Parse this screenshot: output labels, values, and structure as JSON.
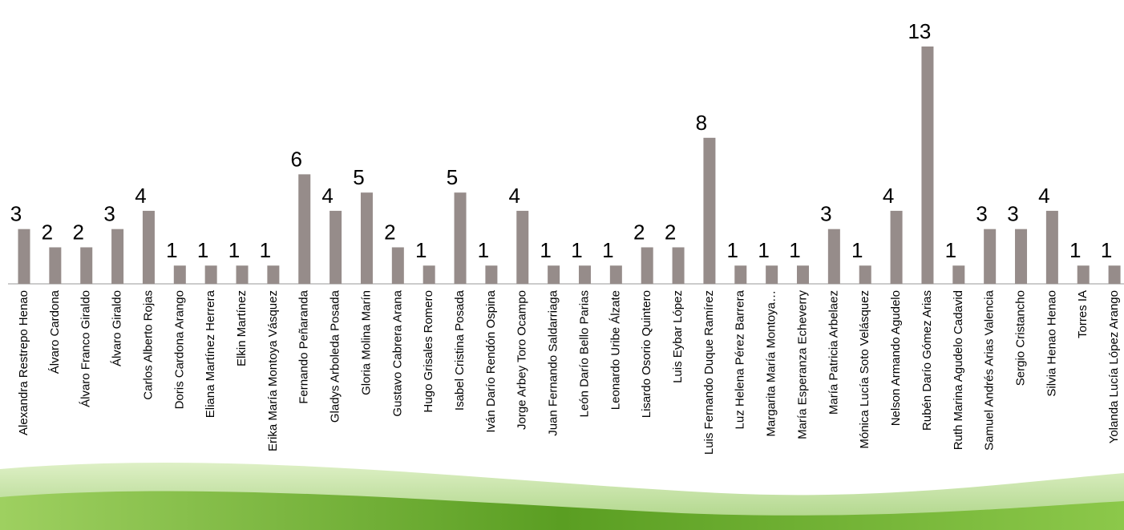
{
  "chart_data": {
    "type": "bar",
    "categories": [
      "Alexandra Restrepo Henao",
      "Álvaro Cardona",
      "Álvaro Franco Giraldo",
      "Álvaro Giraldo",
      "Carlos Alberto Rojas",
      "Doris Cardona Arango",
      "Eliana Martínez Herrera",
      "Elkin Martínez",
      "Erika María Montoya Vásquez",
      "Fernando Peñaranda",
      "Gladys Arboleda Posada",
      "Gloria Molina Marín",
      "Gustavo Cabrera Arana",
      "Hugo Grisales Romero",
      "Isabel Cristina Posada",
      "Iván Darío Rendón Ospina",
      "Jorge Arbey Toro Ocampo",
      "Juan Fernando Saldarriaga",
      "León Darío Bello Parias",
      "Leonardo Uribe Álzate",
      "Lisardo Osorio Quintero",
      "Luis Eybar López",
      "Luis Fernando Duque Ramírez",
      "Luz Helena Pérez Barrera",
      "Margarita María Montoya…",
      "María Esperanza Echeverry",
      "María Patricia Arbelaez",
      "Mónica Lucía Soto Velásquez",
      "Nelson Armando Agudelo",
      "Rubén Darío Gómez Arias",
      "Ruth Marina Agudelo Cadavid",
      "Samuel Andrés Arias Valencia",
      "Sergio Cristancho",
      "Silvia Henao Henao",
      "Torres IA",
      "Yolanda Lucía López Arango"
    ],
    "values": [
      3,
      2,
      2,
      3,
      4,
      1,
      1,
      1,
      1,
      6,
      4,
      5,
      2,
      1,
      5,
      1,
      4,
      1,
      1,
      1,
      2,
      2,
      8,
      1,
      1,
      1,
      3,
      1,
      4,
      13,
      1,
      3,
      3,
      4,
      1,
      1
    ],
    "color": "#968c8a",
    "ylim": [
      0,
      13
    ]
  }
}
